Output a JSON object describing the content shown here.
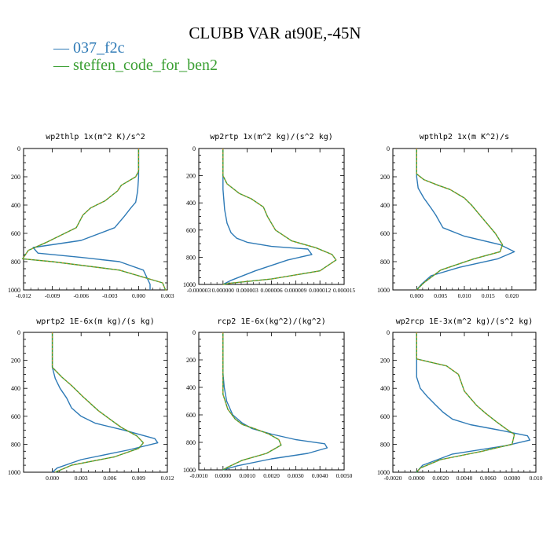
{
  "title": "CLUBB VAR at90E,-45N",
  "legend": [
    {
      "label": "— 037_f2c",
      "color": "#2e7ab6"
    },
    {
      "label": "— steffen_code_for_ben2",
      "color": "#3a9f32"
    }
  ],
  "colors": {
    "series_1": "#2e7ab6",
    "series_2": "#3a9f32",
    "series_2_dash": "#f08020"
  },
  "chart_data": [
    {
      "type": "line",
      "title": "wp2thlp  1x(m^2 K)/s^2",
      "xlim": [
        -0.012,
        0.003
      ],
      "ylim": [
        1000,
        0
      ],
      "xticks": [
        "-0.012",
        "-0.009",
        "-0.006",
        "-0.003",
        "0.000",
        "0.003"
      ],
      "xtick_values": [
        -0.012,
        -0.009,
        -0.006,
        -0.003,
        0.0,
        0.003
      ],
      "yticks": [
        "0",
        "200",
        "400",
        "600",
        "800",
        "1000"
      ],
      "series": [
        {
          "name": "037_f2c",
          "x": [
            0.0,
            0.0,
            0.0,
            -0.0001,
            -0.0003,
            -0.0008,
            -0.0015,
            -0.0025,
            -0.006,
            -0.011,
            -0.0105,
            -0.006,
            -0.002,
            0.0005,
            0.0012,
            0.0012
          ],
          "y": [
            0,
            100,
            200,
            300,
            380,
            420,
            480,
            560,
            650,
            700,
            740,
            770,
            800,
            860,
            960,
            1000
          ]
        },
        {
          "name": "steffen_code_for_ben2",
          "x": [
            0.0,
            0.0,
            0.0,
            -0.0003,
            -0.0018,
            -0.0022,
            -0.0035,
            -0.005,
            -0.0058,
            -0.0065,
            -0.0095,
            -0.0115,
            -0.0121,
            -0.009,
            -0.002,
            0.0025,
            0.0028,
            0.0029
          ],
          "y": [
            0,
            100,
            160,
            200,
            260,
            300,
            370,
            420,
            470,
            560,
            660,
            720,
            780,
            800,
            860,
            950,
            1000,
            1000
          ]
        }
      ]
    },
    {
      "type": "line",
      "title": "wp2rtp  1x(m^2 kg)/(s^2 kg)",
      "xlim": [
        -3e-06,
        1.5e-05
      ],
      "ylim": [
        1000,
        0
      ],
      "xticks": [
        "-0.000003",
        "0.000000",
        "0.000003",
        "0.000006",
        "0.000009",
        "0.000012",
        "0.000015"
      ],
      "xtick_values": [
        -3e-06,
        0.0,
        3e-06,
        6e-06,
        9e-06,
        1.2e-05,
        1.5e-05
      ],
      "yticks": [
        "0",
        "200",
        "400",
        "600",
        "800",
        "1000"
      ],
      "series": [
        {
          "name": "037_f2c",
          "x": [
            0.0,
            0.0,
            0.0,
            2e-07,
            5e-07,
            1e-06,
            1.7e-06,
            3e-06,
            6e-06,
            1.05e-05,
            1.1e-05,
            8e-06,
            4e-06,
            1e-06,
            0.0
          ],
          "y": [
            0,
            150,
            300,
            450,
            550,
            620,
            660,
            690,
            720,
            740,
            780,
            820,
            900,
            970,
            1000
          ]
        },
        {
          "name": "steffen_code_for_ben2",
          "x": [
            0.0,
            0.0,
            0.0,
            5e-07,
            2e-06,
            3.5e-06,
            5e-06,
            5.5e-06,
            6.5e-06,
            8.5e-06,
            1.15e-05,
            1.35e-05,
            1.4e-05,
            1.2e-05,
            6e-06,
            1e-06,
            0.0
          ],
          "y": [
            0,
            100,
            200,
            260,
            330,
            370,
            430,
            500,
            600,
            680,
            730,
            780,
            820,
            900,
            960,
            990,
            1000
          ]
        }
      ]
    },
    {
      "type": "line",
      "title": "wpthlp2  1x(m K^2)/s",
      "xlim": [
        -0.005,
        0.025
      ],
      "ylim": [
        1000,
        0
      ],
      "xticks": [
        "0.000",
        "0.005",
        "0.010",
        "0.015",
        "0.020"
      ],
      "xtick_values": [
        0.0,
        0.005,
        0.01,
        0.015,
        0.02
      ],
      "yticks": [
        "0",
        "200",
        "400",
        "600",
        "800",
        "1000"
      ],
      "series": [
        {
          "name": "037_f2c",
          "x": [
            0.0,
            0.0,
            0.0,
            0.0003,
            0.0015,
            0.003,
            0.004,
            0.0055,
            0.01,
            0.0175,
            0.0205,
            0.017,
            0.009,
            0.003,
            0.001,
            0.0
          ],
          "y": [
            0,
            150,
            200,
            280,
            350,
            420,
            470,
            560,
            620,
            680,
            730,
            780,
            840,
            900,
            960,
            1000
          ]
        },
        {
          "name": "steffen_code_for_ben2",
          "x": [
            0.0,
            0.0,
            0.0,
            0.0015,
            0.0045,
            0.007,
            0.0085,
            0.01,
            0.0115,
            0.0135,
            0.0165,
            0.018,
            0.0175,
            0.012,
            0.005,
            0.0015,
            0.0
          ],
          "y": [
            0,
            100,
            180,
            220,
            260,
            290,
            320,
            350,
            400,
            480,
            600,
            680,
            730,
            780,
            860,
            950,
            1000
          ]
        }
      ]
    },
    {
      "type": "line",
      "title": "wprtp2  1E-6x(m kg)/(s kg)",
      "xlim": [
        -0.003,
        0.012
      ],
      "ylim": [
        1000,
        0
      ],
      "xticks": [
        "0.000",
        "0.003",
        "0.006",
        "0.009",
        "0.012"
      ],
      "xtick_values": [
        0.0,
        0.003,
        0.006,
        0.009,
        0.012
      ],
      "yticks": [
        "0",
        "200",
        "400",
        "600",
        "800",
        "1000"
      ],
      "series": [
        {
          "name": "037_f2c",
          "x": [
            0.0,
            0.0,
            0.0,
            0.0003,
            0.0008,
            0.0015,
            0.002,
            0.003,
            0.0045,
            0.0075,
            0.0107,
            0.011,
            0.008,
            0.003,
            0.0005,
            0.0
          ],
          "y": [
            0,
            150,
            250,
            330,
            400,
            470,
            540,
            600,
            650,
            700,
            760,
            790,
            840,
            910,
            970,
            1000
          ]
        },
        {
          "name": "steffen_code_for_ben2",
          "x": [
            0.0,
            0.0,
            0.0,
            0.001,
            0.002,
            0.0032,
            0.0048,
            0.006,
            0.0072,
            0.0088,
            0.0095,
            0.009,
            0.0065,
            0.002,
            0.0003
          ],
          "y": [
            0,
            150,
            250,
            320,
            380,
            460,
            560,
            620,
            680,
            740,
            790,
            830,
            890,
            950,
            1000
          ]
        }
      ]
    },
    {
      "type": "line",
      "title": "rcp2  1E-6x(kg^2)/(kg^2)",
      "xlim": [
        -0.001,
        0.005
      ],
      "ylim": [
        1000,
        0
      ],
      "xticks": [
        "-0.0010",
        "0.0000",
        "0.0010",
        "0.0020",
        "0.0030",
        "0.0040",
        "0.0050"
      ],
      "xtick_values": [
        -0.001,
        0.0,
        0.001,
        0.002,
        0.003,
        0.004,
        0.005
      ],
      "yticks": [
        "0",
        "200",
        "400",
        "600",
        "800",
        "1000"
      ],
      "series": [
        {
          "name": "037_f2c",
          "x": [
            0.0,
            0.0,
            0.0,
            5e-05,
            0.00015,
            0.0004,
            0.0008,
            0.0012,
            0.002,
            0.003,
            0.0042,
            0.0043,
            0.0035,
            0.002,
            0.0006,
            0.0
          ],
          "y": [
            0,
            200,
            300,
            400,
            500,
            600,
            660,
            700,
            740,
            780,
            810,
            840,
            880,
            920,
            970,
            1000
          ]
        },
        {
          "name": "steffen_code_for_ben2",
          "x": [
            0.0,
            0.0,
            0.0,
            0.0002,
            0.0005,
            0.0008,
            0.0013,
            0.0019,
            0.0023,
            0.0024,
            0.0018,
            0.0008,
            0.0002,
            0.0
          ],
          "y": [
            0,
            300,
            450,
            560,
            630,
            670,
            700,
            740,
            780,
            820,
            880,
            930,
            980,
            1000
          ]
        }
      ]
    },
    {
      "type": "line",
      "title": "wp2rcp  1E-3x(m^2 kg)/(s^2 kg)",
      "xlim": [
        -0.002,
        0.01
      ],
      "ylim": [
        1000,
        0
      ],
      "xticks": [
        "-0.0020",
        "0.0000",
        "0.0020",
        "0.0040",
        "0.0060",
        "0.0080",
        "0.010"
      ],
      "xtick_values": [
        -0.002,
        0.0,
        0.002,
        0.004,
        0.006,
        0.008,
        0.01
      ],
      "yticks": [
        "0",
        "200",
        "400",
        "600",
        "800",
        "1000"
      ],
      "series": [
        {
          "name": "037_f2c",
          "x": [
            0.0,
            0.0,
            0.0,
            0.0003,
            0.0009,
            0.0016,
            0.0022,
            0.003,
            0.0045,
            0.007,
            0.0093,
            0.0095,
            0.0075,
            0.003,
            0.0005,
            0.0
          ],
          "y": [
            0,
            200,
            320,
            400,
            460,
            520,
            570,
            620,
            660,
            700,
            740,
            770,
            810,
            870,
            950,
            1000
          ]
        },
        {
          "name": "steffen_code_for_ben2",
          "x": [
            0.0,
            0.0,
            0.0,
            0.001,
            0.0025,
            0.0035,
            0.004,
            0.005,
            0.0058,
            0.0067,
            0.0075,
            0.0082,
            0.008,
            0.0055,
            0.002,
            0.0003,
            0.0
          ],
          "y": [
            0,
            150,
            190,
            210,
            240,
            300,
            420,
            520,
            580,
            640,
            690,
            730,
            800,
            850,
            910,
            970,
            1000
          ]
        }
      ]
    }
  ]
}
